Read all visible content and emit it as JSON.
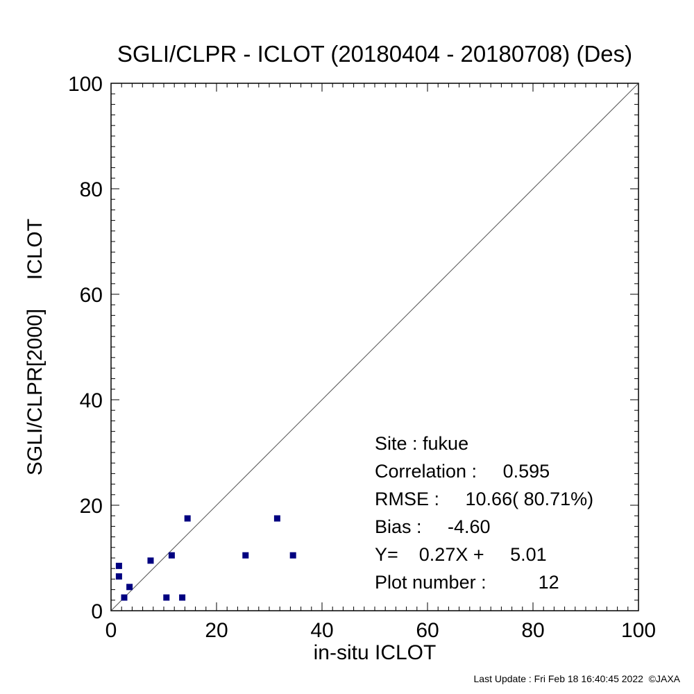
{
  "chart_data": {
    "type": "scatter",
    "title": "SGLI/CLPR - ICLOT (20180404 - 20180708) (Des)",
    "xlabel": "in-situ ICLOT",
    "ylabel": "SGLI/CLPR[2000]     ICLOT",
    "xlim": [
      0,
      100
    ],
    "ylim": [
      0,
      100
    ],
    "x_ticks": [
      "0",
      "20",
      "40",
      "60",
      "80",
      "100"
    ],
    "y_ticks": [
      "0",
      "20",
      "40",
      "60",
      "80",
      "100"
    ],
    "grid": false,
    "one_to_one_line": true,
    "marker_color": "#000080",
    "series": [
      {
        "points": [
          {
            "x": 1.5,
            "y": 8.5
          },
          {
            "x": 1.5,
            "y": 6.5
          },
          {
            "x": 2.5,
            "y": 2.5
          },
          {
            "x": 3.5,
            "y": 4.5
          },
          {
            "x": 7.5,
            "y": 9.5
          },
          {
            "x": 10.5,
            "y": 2.5
          },
          {
            "x": 11.5,
            "y": 10.5
          },
          {
            "x": 13.5,
            "y": 2.5
          },
          {
            "x": 14.5,
            "y": 17.5
          },
          {
            "x": 25.5,
            "y": 10.5
          },
          {
            "x": 31.5,
            "y": 17.5
          },
          {
            "x": 34.5,
            "y": 10.5
          }
        ]
      }
    ],
    "stats": {
      "site": "Site : fukue",
      "correlation": "Correlation :     0.595",
      "rmse": "RMSE :     10.66( 80.71%)",
      "bias": "Bias :     -4.60",
      "regression": "Y=    0.27X +     5.01",
      "plot_number": "Plot number :          12"
    }
  },
  "footer": "Last Update : Fri Feb 18 16:40:45 2022  ©JAXA"
}
